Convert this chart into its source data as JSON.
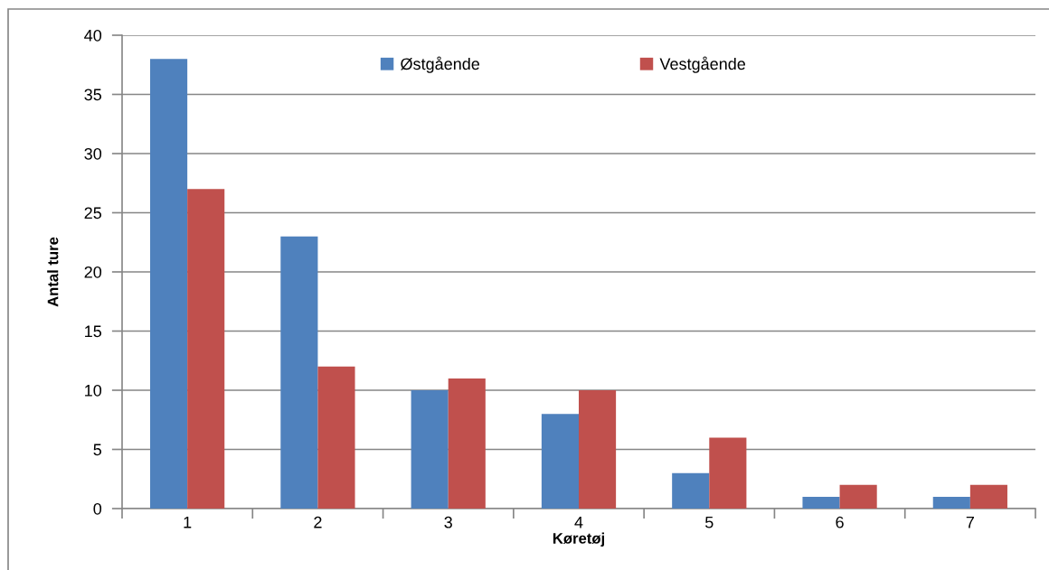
{
  "chart_data": {
    "type": "bar",
    "xlabel": "Køretøj",
    "ylabel": "Antal ture",
    "categories": [
      "1",
      "2",
      "3",
      "4",
      "5",
      "6",
      "7"
    ],
    "series": [
      {
        "name": "Østgående",
        "color": "#4f81bd",
        "values": [
          38,
          23,
          10,
          8,
          3,
          1,
          1
        ]
      },
      {
        "name": "Vestgående",
        "color": "#c0504d",
        "values": [
          27,
          12,
          11,
          10,
          6,
          2,
          2
        ]
      }
    ],
    "ylim": [
      0,
      40
    ],
    "yticks": [
      0,
      5,
      10,
      15,
      20,
      25,
      30,
      35,
      40
    ],
    "grid": "y",
    "legend": "top"
  }
}
